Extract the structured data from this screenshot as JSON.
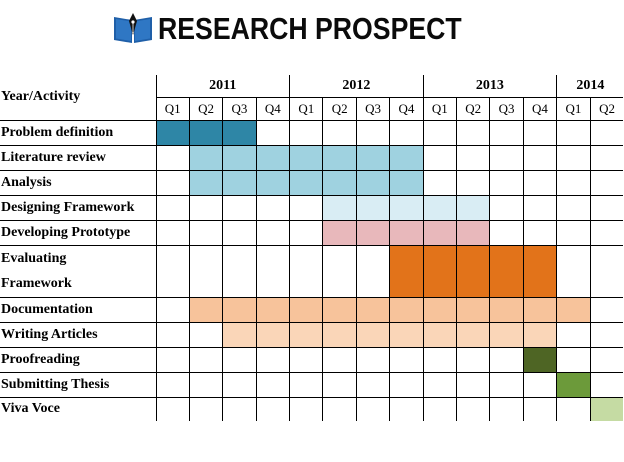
{
  "logo": {
    "text": "RESEARCH PROSPECT",
    "icon": "book-pen-icon"
  },
  "table": {
    "corner_label": "Year/Activity",
    "years": [
      {
        "label": "2011",
        "span": 4
      },
      {
        "label": "2012",
        "span": 4
      },
      {
        "label": "2013",
        "span": 4
      },
      {
        "label": "2014",
        "span": 2
      }
    ],
    "quarters": [
      "Q1",
      "Q2",
      "Q3",
      "Q4",
      "Q1",
      "Q2",
      "Q3",
      "Q4",
      "Q1",
      "Q2",
      "Q3",
      "Q4",
      "Q1",
      "Q2"
    ],
    "activities": [
      {
        "name": "Problem definition",
        "start": 0,
        "end": 2,
        "color": "#2e86a6"
      },
      {
        "name": "Literature review",
        "start": 1,
        "end": 7,
        "color": "#9fd2e0"
      },
      {
        "name": "Analysis",
        "start": 1,
        "end": 7,
        "color": "#9fd2e0"
      },
      {
        "name": "Designing Framework",
        "start": 5,
        "end": 9,
        "color": "#d9edf4"
      },
      {
        "name": "Developing Prototype",
        "start": 5,
        "end": 9,
        "color": "#e8b8bb"
      },
      {
        "name": "Evaluating Framework",
        "lines": [
          "Evaluating",
          "Framework"
        ],
        "start": 7,
        "end": 11,
        "color": "#e2731a",
        "tall": true
      },
      {
        "name": "Documentation",
        "start": 1,
        "end": 12,
        "color": "#f7c39b"
      },
      {
        "name": "Writing Articles",
        "start": 2,
        "end": 11,
        "color": "#fad6b8"
      },
      {
        "name": "Proofreading",
        "start": 11,
        "end": 11,
        "color": "#4e6524"
      },
      {
        "name": "Submitting Thesis",
        "start": 12,
        "end": 12,
        "color": "#6c9a3a"
      },
      {
        "name": "Viva Voce",
        "start": 13,
        "end": 13,
        "color": "#c5dba3"
      }
    ]
  }
}
